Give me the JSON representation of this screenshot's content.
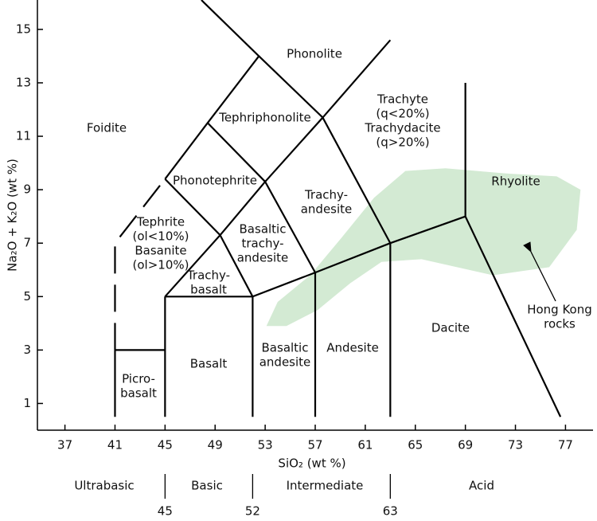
{
  "chart_data": {
    "type": "tas",
    "x_label": "SiO₂ (wt %)",
    "y_label": "Na₂O + K₂O (wt %)",
    "xlim": [
      34.8,
      79.2
    ],
    "ylim": [
      0,
      16.1
    ],
    "xticks": [
      37,
      41,
      45,
      49,
      53,
      57,
      61,
      65,
      69,
      73,
      77
    ],
    "yticks": [
      1,
      3,
      5,
      7,
      9,
      11,
      13,
      15
    ],
    "boundaries": [
      {
        "x": [
          41,
          41
        ],
        "y": [
          0.5,
          3
        ]
      },
      {
        "x": [
          41,
          45
        ],
        "y": [
          3,
          3
        ]
      },
      {
        "x": [
          45,
          45
        ],
        "y": [
          0.5,
          5
        ]
      },
      {
        "x": [
          52,
          52
        ],
        "y": [
          0.5,
          5
        ]
      },
      {
        "x": [
          57,
          57
        ],
        "y": [
          0.5,
          5.9
        ]
      },
      {
        "x": [
          63,
          63
        ],
        "y": [
          0.5,
          7
        ]
      },
      {
        "x": [
          45,
          52,
          57,
          63,
          69
        ],
        "y": [
          5,
          5,
          5.9,
          7,
          8
        ]
      },
      {
        "x": [
          45,
          49.4,
          52
        ],
        "y": [
          5,
          7.3,
          5
        ]
      },
      {
        "x": [
          49.4,
          53,
          57
        ],
        "y": [
          7.3,
          9.3,
          5.9
        ]
      },
      {
        "x": [
          53,
          57.6,
          63
        ],
        "y": [
          9.3,
          11.7,
          7
        ]
      },
      {
        "x": [
          45,
          49.4
        ],
        "y": [
          9.4,
          7.3
        ]
      },
      {
        "x": [
          48.4,
          53
        ],
        "y": [
          11.5,
          9.3
        ]
      },
      {
        "x": [
          52.5,
          57.6,
          63
        ],
        "y": [
          14,
          11.7,
          14.6
        ]
      },
      {
        "x": [
          45,
          48.4,
          52.5,
          47.9
        ],
        "y": [
          9.4,
          11.5,
          14,
          16.1
        ]
      },
      {
        "x": [
          69,
          69
        ],
        "y": [
          8,
          13
        ]
      },
      {
        "x": [
          69,
          76.6
        ],
        "y": [
          8,
          0.5
        ]
      },
      {
        "x": [
          41,
          41,
          45
        ],
        "y": [
          3,
          7,
          9.4
        ],
        "dashed": true
      }
    ],
    "region": {
      "label": [
        "Hong Kong",
        "rocks"
      ],
      "color": "#d3ead3",
      "x": [
        53.1,
        54.0,
        56.6,
        59.1,
        61.7,
        64.2,
        67.4,
        72.5,
        76.3,
        78.2,
        77.9,
        75.7,
        71.2,
        65.5,
        62.3,
        59.8,
        57.2,
        54.7
      ],
      "y": [
        3.9,
        4.8,
        5.8,
        7.2,
        8.7,
        9.7,
        9.8,
        9.6,
        9.5,
        9.0,
        7.5,
        6.1,
        5.8,
        6.4,
        6.3,
        5.5,
        4.5,
        3.9
      ]
    },
    "fields": [
      {
        "label": [
          "Foidite"
        ]
      },
      {
        "label": [
          "Phonolite"
        ]
      },
      {
        "label": [
          "Tephriphonolite"
        ]
      },
      {
        "label": [
          "Trachyte",
          "(q<20%)",
          "Trachydacite",
          "(q>20%)"
        ]
      },
      {
        "label": [
          "Phonotephrite"
        ]
      },
      {
        "label": [
          "Tephrite",
          "(ol<10%)",
          "Basanite",
          "(ol>10%)"
        ]
      },
      {
        "label": [
          "Trachy-",
          "andesite"
        ]
      },
      {
        "label": [
          "Basaltic",
          "trachy-",
          "andesite"
        ]
      },
      {
        "label": [
          "Trachy-",
          "basalt"
        ]
      },
      {
        "label": [
          "Rhyolite"
        ]
      },
      {
        "label": [
          "Picro-",
          "basalt"
        ]
      },
      {
        "label": [
          "Basalt"
        ]
      },
      {
        "label": [
          "Basaltic",
          "andesite"
        ]
      },
      {
        "label": [
          "Andesite"
        ]
      },
      {
        "label": [
          "Dacite"
        ]
      }
    ],
    "classes": {
      "names": [
        "Ultrabasic",
        "Basic",
        "Intermediate",
        "Acid"
      ],
      "boundaries": [
        45,
        52,
        63
      ]
    }
  }
}
